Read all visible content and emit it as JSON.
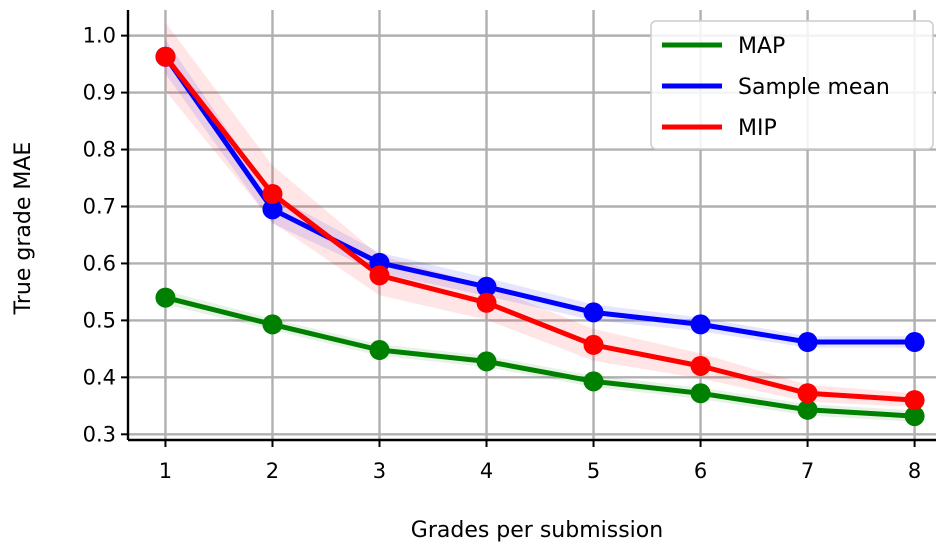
{
  "chart_data": {
    "type": "line",
    "title": "",
    "xlabel": "Grades per submission",
    "ylabel": "True grade MAE",
    "x": [
      1,
      2,
      3,
      4,
      5,
      6,
      7,
      8
    ],
    "xticks": [
      "1",
      "2",
      "3",
      "4",
      "5",
      "6",
      "7",
      "8"
    ],
    "yticks": [
      "0.3",
      "0.4",
      "0.5",
      "0.6",
      "0.7",
      "0.8",
      "0.9",
      "1.0"
    ],
    "xlim": [
      0.65,
      8.2
    ],
    "ylim": [
      0.29,
      1.045
    ],
    "grid": true,
    "legend_position": "top-right",
    "series": [
      {
        "name": "MAP",
        "color": "#008000",
        "values": [
          0.54,
          0.493,
          0.448,
          0.428,
          0.393,
          0.372,
          0.343,
          0.332
        ],
        "band_halfwidth": [
          0.012,
          0.01,
          0.01,
          0.01,
          0.01,
          0.01,
          0.01,
          0.01
        ]
      },
      {
        "name": "Sample mean",
        "color": "#0000ff",
        "values": [
          0.963,
          0.695,
          0.601,
          0.559,
          0.514,
          0.493,
          0.462,
          0.462
        ],
        "band_halfwidth": [
          0.03,
          0.025,
          0.018,
          0.016,
          0.014,
          0.012,
          0.01,
          0.01
        ]
      },
      {
        "name": "MIP",
        "color": "#ff0000",
        "values": [
          0.963,
          0.722,
          0.579,
          0.531,
          0.457,
          0.42,
          0.372,
          0.36
        ],
        "band_halfwidth": [
          0.06,
          0.05,
          0.035,
          0.03,
          0.028,
          0.022,
          0.015,
          0.012
        ]
      }
    ]
  }
}
